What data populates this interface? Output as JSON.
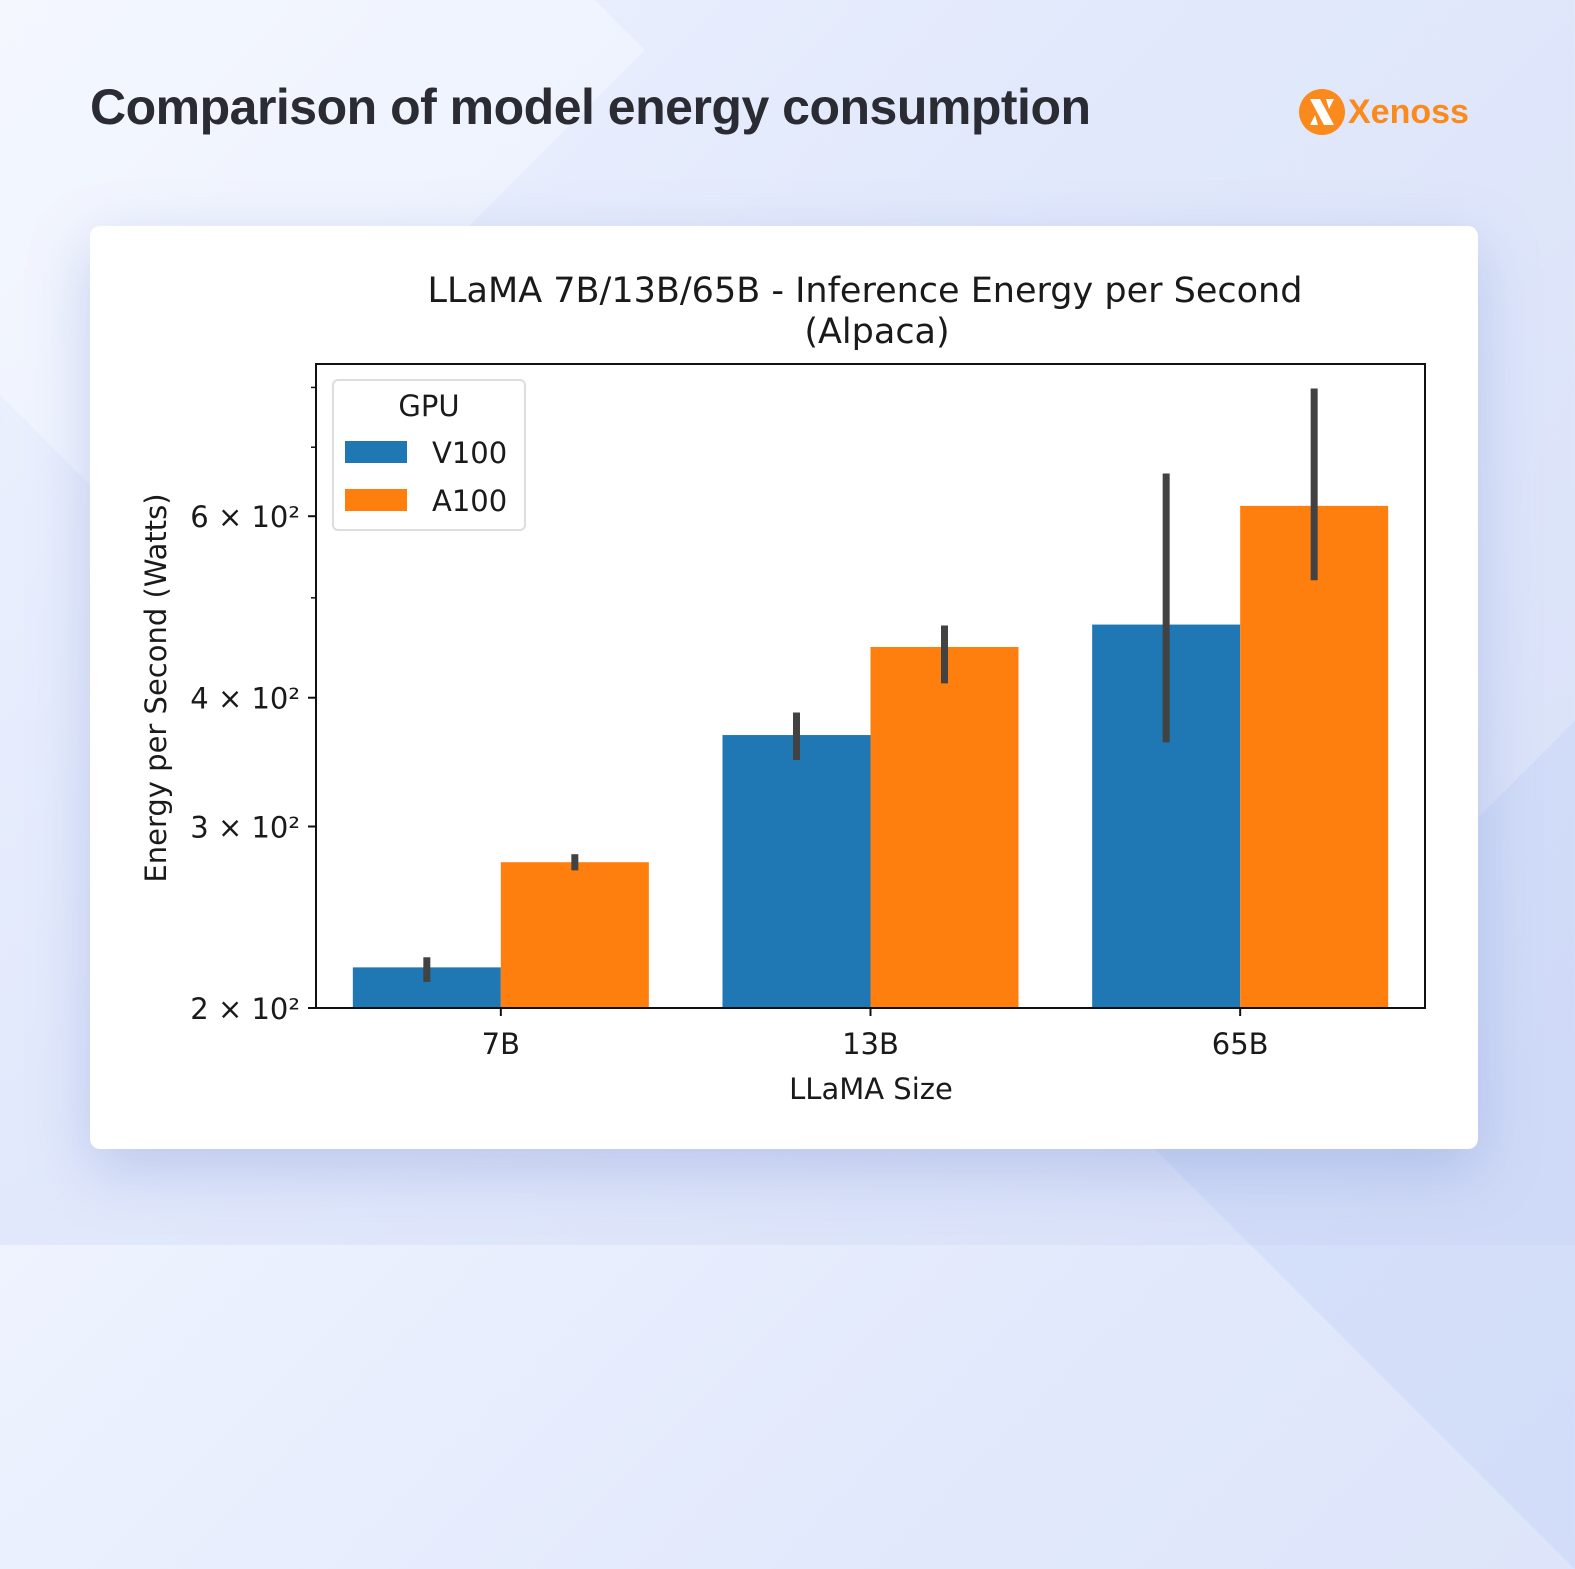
{
  "header": {
    "title": "Comparison of model energy consumption",
    "logo_text": "Xenoss",
    "logo_color": "#fb8a1c"
  },
  "chart_data": {
    "type": "bar",
    "title": "LLaMA 7B/13B/65B - Inference Energy per Second",
    "subtitle": "(Alpaca)",
    "xlabel": "LLaMA Size",
    "ylabel": "Energy per Second (Watts)",
    "yscale": "log",
    "ylim": [
      200,
      843
    ],
    "yticks": [
      {
        "value": 200,
        "label": "2 × 10²"
      },
      {
        "value": 300,
        "label": "3 × 10²"
      },
      {
        "value": 400,
        "label": "4 × 10²"
      },
      {
        "value": 600,
        "label": "6 × 10²"
      }
    ],
    "yminor_ticks": [
      500,
      700,
      800
    ],
    "categories": [
      "7B",
      "13B",
      "65B"
    ],
    "legend": {
      "title": "GPU",
      "placement": "upper-left"
    },
    "grid": false,
    "series": [
      {
        "name": "V100",
        "color": "#1f77b4",
        "values": [
          219,
          368,
          471
        ],
        "error_low": [
          212,
          348,
          362
        ],
        "error_high": [
          224,
          387,
          660
        ]
      },
      {
        "name": "A100",
        "color": "#ff7f0e",
        "values": [
          277,
          448,
          614
        ],
        "error_low": [
          272,
          413,
          520
        ],
        "error_high": [
          282,
          470,
          798
        ]
      }
    ]
  }
}
